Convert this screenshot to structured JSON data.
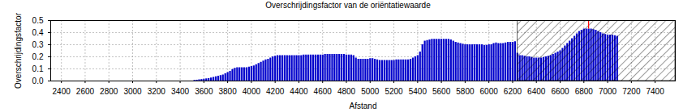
{
  "chart_data": {
    "type": "bar",
    "title": "Overschrijdingsfactor van de oriëntatiewaarde",
    "x_label": "Afstand",
    "y_label": "Overschrijdingsfactor",
    "color": "#0000cc",
    "grid": true,
    "xlim": [
      2310,
      7570
    ],
    "ylim": [
      0,
      0.5
    ],
    "xticks": [
      2400,
      2600,
      2800,
      3000,
      3200,
      3400,
      3600,
      3800,
      4000,
      4200,
      4400,
      4600,
      4800,
      5000,
      5200,
      5400,
      5600,
      5800,
      6000,
      6200,
      6400,
      6600,
      6800,
      7000,
      7200,
      7400
    ],
    "yticks": [
      {
        "value": 0,
        "label": "0.0"
      },
      {
        "value": 0.1,
        "label": "0.1"
      },
      {
        "value": 0.2,
        "label": "0.2"
      },
      {
        "value": 0.3,
        "label": "0.3"
      },
      {
        "value": 0.4,
        "label": "0.4"
      },
      {
        "value": 0.5,
        "label": "0.5"
      }
    ],
    "hatched_region": [
      6240,
      7570
    ],
    "max_marker": {
      "x": 6840,
      "color": "#ff0000"
    },
    "x": [
      3520,
      3540,
      3560,
      3580,
      3600,
      3620,
      3640,
      3660,
      3680,
      3700,
      3720,
      3740,
      3760,
      3780,
      3800,
      3820,
      3840,
      3860,
      3880,
      3900,
      3920,
      3940,
      3960,
      3980,
      4000,
      4020,
      4040,
      4060,
      4080,
      4100,
      4120,
      4140,
      4160,
      4180,
      4200,
      4220,
      4240,
      4260,
      4280,
      4300,
      4320,
      4340,
      4360,
      4380,
      4400,
      4420,
      4440,
      4460,
      4480,
      4500,
      4520,
      4540,
      4560,
      4580,
      4600,
      4620,
      4640,
      4660,
      4680,
      4700,
      4720,
      4740,
      4760,
      4780,
      4800,
      4820,
      4840,
      4860,
      4880,
      4900,
      4920,
      4940,
      4960,
      4980,
      5000,
      5020,
      5040,
      5060,
      5080,
      5100,
      5120,
      5140,
      5160,
      5180,
      5200,
      5220,
      5240,
      5260,
      5280,
      5300,
      5320,
      5340,
      5360,
      5380,
      5400,
      5420,
      5440,
      5460,
      5480,
      5500,
      5520,
      5540,
      5560,
      5580,
      5600,
      5620,
      5640,
      5660,
      5680,
      5700,
      5720,
      5740,
      5760,
      5780,
      5800,
      5820,
      5840,
      5860,
      5880,
      5900,
      5920,
      5940,
      5960,
      5980,
      6000,
      6020,
      6040,
      6060,
      6080,
      6100,
      6120,
      6140,
      6160,
      6180,
      6200,
      6220,
      6240,
      6260,
      6280,
      6300,
      6320,
      6340,
      6360,
      6380,
      6400,
      6420,
      6440,
      6460,
      6480,
      6500,
      6520,
      6540,
      6560,
      6580,
      6600,
      6620,
      6640,
      6660,
      6680,
      6700,
      6720,
      6740,
      6760,
      6780,
      6800,
      6820,
      6840,
      6860,
      6880,
      6900,
      6920,
      6940,
      6960,
      6980,
      7000,
      7020,
      7040,
      7060,
      7080
    ],
    "values": [
      0.005,
      0.007,
      0.01,
      0.012,
      0.015,
      0.018,
      0.02,
      0.025,
      0.03,
      0.035,
      0.04,
      0.045,
      0.05,
      0.06,
      0.07,
      0.08,
      0.095,
      0.105,
      0.11,
      0.11,
      0.11,
      0.11,
      0.11,
      0.115,
      0.12,
      0.125,
      0.135,
      0.145,
      0.155,
      0.165,
      0.175,
      0.18,
      0.19,
      0.2,
      0.205,
      0.21,
      0.21,
      0.21,
      0.21,
      0.21,
      0.21,
      0.21,
      0.21,
      0.21,
      0.21,
      0.21,
      0.215,
      0.215,
      0.215,
      0.215,
      0.215,
      0.215,
      0.215,
      0.215,
      0.215,
      0.22,
      0.22,
      0.22,
      0.22,
      0.22,
      0.22,
      0.22,
      0.22,
      0.22,
      0.215,
      0.215,
      0.215,
      0.21,
      0.19,
      0.18,
      0.18,
      0.18,
      0.18,
      0.18,
      0.185,
      0.185,
      0.18,
      0.175,
      0.17,
      0.17,
      0.17,
      0.17,
      0.17,
      0.17,
      0.17,
      0.175,
      0.175,
      0.175,
      0.175,
      0.175,
      0.175,
      0.18,
      0.19,
      0.2,
      0.21,
      0.24,
      0.3,
      0.33,
      0.335,
      0.34,
      0.345,
      0.345,
      0.345,
      0.345,
      0.345,
      0.345,
      0.345,
      0.345,
      0.34,
      0.33,
      0.32,
      0.315,
      0.31,
      0.305,
      0.3,
      0.3,
      0.3,
      0.3,
      0.3,
      0.3,
      0.3,
      0.3,
      0.295,
      0.295,
      0.3,
      0.3,
      0.31,
      0.315,
      0.31,
      0.31,
      0.31,
      0.315,
      0.32,
      0.32,
      0.32,
      0.325,
      0.23,
      0.21,
      0.21,
      0.205,
      0.2,
      0.2,
      0.195,
      0.19,
      0.19,
      0.19,
      0.19,
      0.195,
      0.2,
      0.205,
      0.21,
      0.22,
      0.23,
      0.24,
      0.25,
      0.27,
      0.29,
      0.31,
      0.33,
      0.35,
      0.37,
      0.39,
      0.41,
      0.42,
      0.43,
      0.43,
      0.43,
      0.43,
      0.425,
      0.42,
      0.41,
      0.4,
      0.39,
      0.385,
      0.38,
      0.38,
      0.38,
      0.375,
      0.37
    ]
  }
}
